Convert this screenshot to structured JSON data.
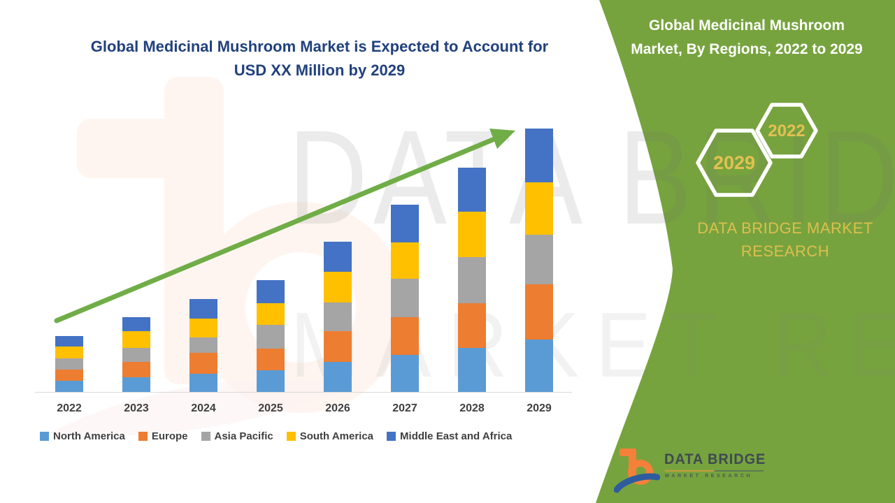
{
  "main_title": {
    "line1": "Global Medicinal Mushroom Market is Expected to Account for",
    "line2": "USD XX Million by 2029"
  },
  "side_panel": {
    "bg_color": "#77A33E",
    "title_line1": "Global Medicinal Mushroom",
    "title_line2": "Market, By Regions, 2022 to 2029",
    "hexagon_back_label": "2029",
    "hexagon_front_label": "2022",
    "brand_line1": "DATA BRIDGE MARKET",
    "brand_line2": "RESEARCH",
    "gold_color": "#E0C152"
  },
  "watermark": {
    "row1": "DATA BRIDGE",
    "row2": "MARKET RESEARCH"
  },
  "trend_arrow": {
    "color": "#70AD47"
  },
  "logo": {
    "wordmark": "DATA BRIDGE",
    "subline": "MARKET RESEARCH"
  },
  "chart_data": {
    "type": "bar",
    "stacked": true,
    "title": "Global Medicinal Mushroom Market is Expected to Account for USD XX Million by 2029",
    "xlabel": "",
    "ylabel": "",
    "value_units": "relative height units (value axis unlabeled; market shown as USD XX Million)",
    "legend_position": "bottom",
    "grid": false,
    "axis_line_color": "#D9D9D9",
    "categories": [
      "2022",
      "2023",
      "2024",
      "2025",
      "2026",
      "2027",
      "2028",
      "2029"
    ],
    "series": [
      {
        "name": "North America",
        "color": "#5B9BD5",
        "values": [
          17,
          22,
          27,
          32,
          44,
          54,
          64,
          76
        ]
      },
      {
        "name": "Europe",
        "color": "#ED7D31",
        "values": [
          16,
          22,
          30,
          31,
          44,
          54,
          64,
          79
        ]
      },
      {
        "name": "Asia Pacific",
        "color": "#A5A5A5",
        "values": [
          16,
          20,
          22,
          34,
          41,
          55,
          66,
          71
        ]
      },
      {
        "name": "South America",
        "color": "#FFC000",
        "values": [
          17,
          24,
          27,
          31,
          44,
          52,
          65,
          75
        ]
      },
      {
        "name": "Middle East and Africa",
        "color": "#4472C4",
        "values": [
          15,
          20,
          28,
          33,
          43,
          54,
          63,
          77
        ]
      }
    ]
  }
}
